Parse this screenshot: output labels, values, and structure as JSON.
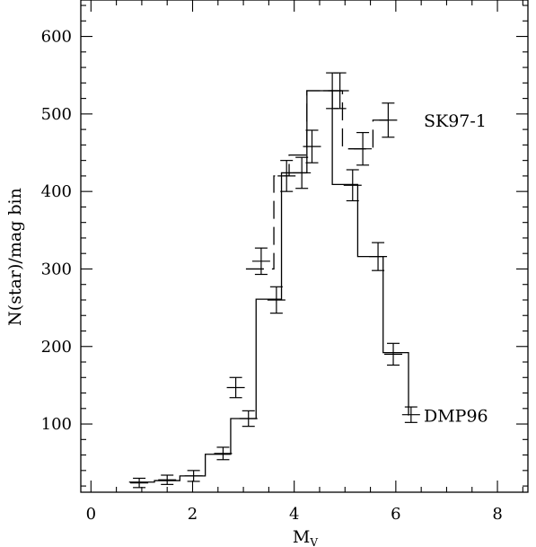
{
  "chart_data": {
    "type": "line",
    "title": "",
    "xlabel": "M",
    "xlabel_sub": "V",
    "ylabel": "N(star)/mag bin",
    "xlim": [
      -0.2,
      8.6
    ],
    "ylim": [
      12,
      647
    ],
    "x_ticks": [
      0,
      2,
      4,
      6,
      8
    ],
    "x_tick_labels": [
      "0",
      "2",
      "4",
      "6",
      "8"
    ],
    "y_ticks": [
      100,
      200,
      300,
      400,
      500,
      600
    ],
    "y_tick_labels": [
      "100",
      "200",
      "300",
      "400",
      "500",
      "600"
    ],
    "x_minor_step": 0.5,
    "y_minor_step": 20,
    "grid": false,
    "colors": {
      "ink": "#000000",
      "background": "#ffffff"
    },
    "series": [
      {
        "name": "DMP96",
        "style": "step-solid",
        "label_at": [
          6.55,
          111
        ],
        "bin_edges": [
          0.75,
          1.25,
          1.75,
          2.25,
          2.75,
          3.25,
          3.75,
          4.25,
          4.75,
          5.25,
          5.75,
          6.25
        ],
        "values": [
          25,
          27,
          33,
          61,
          107,
          261,
          424,
          530,
          409,
          316,
          192,
          111
        ],
        "points": [
          {
            "x": 0.95,
            "y": 24,
            "err": 6
          },
          {
            "x": 1.5,
            "y": 28,
            "err": 6
          },
          {
            "x": 2.02,
            "y": 33,
            "err": 7
          },
          {
            "x": 2.6,
            "y": 62,
            "err": 8
          },
          {
            "x": 3.1,
            "y": 107,
            "err": 10
          },
          {
            "x": 3.65,
            "y": 260,
            "err": 17
          },
          {
            "x": 4.15,
            "y": 424,
            "err": 20
          },
          {
            "x": 4.75,
            "y": 530,
            "err": 23
          },
          {
            "x": 5.15,
            "y": 408,
            "err": 20
          },
          {
            "x": 5.65,
            "y": 316,
            "err": 18
          },
          {
            "x": 5.95,
            "y": 190,
            "err": 14
          },
          {
            "x": 6.3,
            "y": 112,
            "err": 10
          }
        ]
      },
      {
        "name": "SK97-1",
        "style": "step-dashed",
        "label_at": [
          6.55,
          492
        ],
        "bin_edges": [
          3.05,
          3.6,
          3.9,
          4.25,
          4.45,
          4.95,
          5.2,
          5.55,
          5.85
        ],
        "values": [
          300,
          420,
          447,
          530,
          530,
          455,
          455,
          492
        ],
        "points": [
          {
            "x": 2.85,
            "y": 147,
            "err": 13
          },
          {
            "x": 3.35,
            "y": 310,
            "err": 17
          },
          {
            "x": 3.85,
            "y": 420,
            "err": 20
          },
          {
            "x": 4.35,
            "y": 458,
            "err": 21
          },
          {
            "x": 4.9,
            "y": 530,
            "err": 23
          },
          {
            "x": 5.35,
            "y": 455,
            "err": 21
          },
          {
            "x": 5.85,
            "y": 492,
            "err": 22
          }
        ]
      }
    ]
  }
}
